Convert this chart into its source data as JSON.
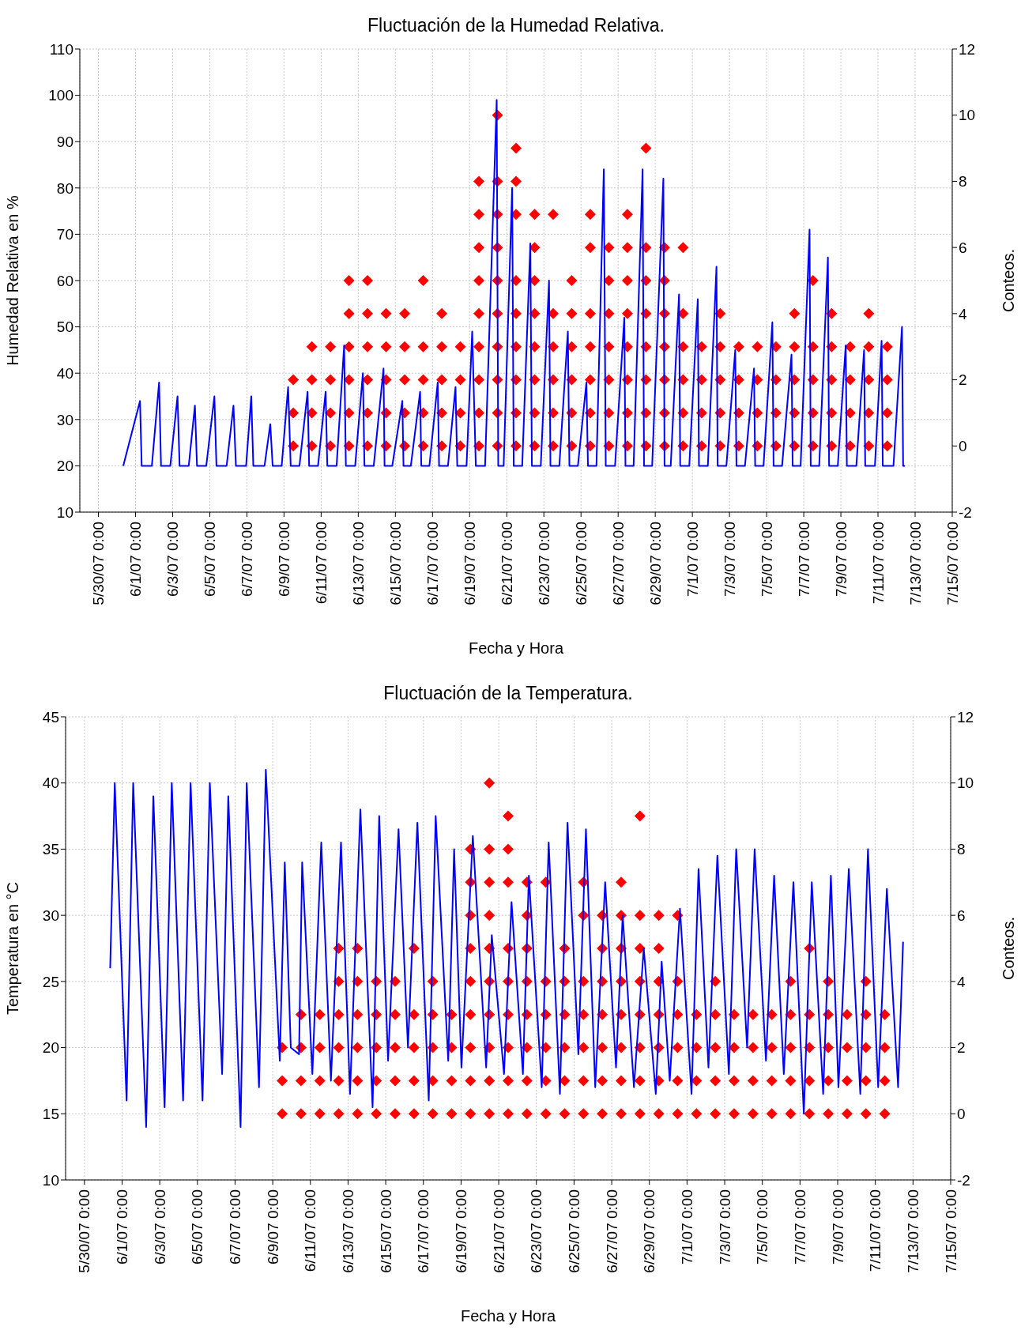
{
  "chart_data": [
    {
      "type": "line",
      "title": "Fluctuación de la Humedad Relativa.",
      "xlabel": "Fecha y Hora",
      "ylabel": "Humedad Relativa en %",
      "y2label": "Conteos.",
      "xlim": [
        "--05-29",
        "--07-15"
      ],
      "xticks": [
        {
          "value": "--05-30",
          "label": "5/30/07 0:00"
        },
        {
          "value": "--06-01",
          "label": "6/1/07 0:00"
        },
        {
          "value": "--06-03",
          "label": "6/3/07 0:00"
        },
        {
          "value": "--06-05",
          "label": "6/5/07 0:00"
        },
        {
          "value": "--06-07",
          "label": "6/7/07 0:00"
        },
        {
          "value": "--06-09",
          "label": "6/9/07 0:00"
        },
        {
          "value": "--06-11",
          "label": "6/11/07 0:00"
        },
        {
          "value": "--06-13",
          "label": "6/13/07 0:00"
        },
        {
          "value": "--06-15",
          "label": "6/15/07 0:00"
        },
        {
          "value": "--06-17",
          "label": "6/17/07 0:00"
        },
        {
          "value": "--06-19",
          "label": "6/19/07 0:00"
        },
        {
          "value": "--06-21",
          "label": "6/21/07 0:00"
        },
        {
          "value": "--06-23",
          "label": "6/23/07 0:00"
        },
        {
          "value": "--06-25",
          "label": "6/25/07 0:00"
        },
        {
          "value": "--06-27",
          "label": "6/27/07 0:00"
        },
        {
          "value": "--06-29",
          "label": "6/29/07 0:00"
        },
        {
          "value": "--07-01",
          "label": "7/1/07 0:00"
        },
        {
          "value": "--07-03",
          "label": "7/3/07 0:00"
        },
        {
          "value": "--07-05",
          "label": "7/5/07 0:00"
        },
        {
          "value": "--07-07",
          "label": "7/7/07 0:00"
        },
        {
          "value": "--07-09",
          "label": "7/9/07 0:00"
        },
        {
          "value": "--07-11",
          "label": "7/11/07 0:00"
        },
        {
          "value": "--07-13",
          "label": "7/13/07 0:00"
        },
        {
          "value": "--07-15",
          "label": "7/15/07 0:00"
        }
      ],
      "ylim": [
        10,
        110
      ],
      "yticks": [
        10,
        20,
        30,
        40,
        50,
        60,
        70,
        80,
        90,
        100,
        110
      ],
      "y2lim": [
        -2,
        12
      ],
      "y2ticks": [
        -2,
        0,
        2,
        4,
        6,
        8,
        10,
        12
      ],
      "grid": true,
      "series": [
        {
          "color": "#0000ff",
          "x": [
            "--05-31T08:10",
            "--06-01T05:50",
            "--06-01T08:00",
            "--06-01T21:10",
            "--06-02T06:30",
            "--06-02T09:00",
            "--06-02T21:00",
            "--06-03T06:20",
            "--06-03T09:00",
            "--06-03T20:50",
            "--06-04T04:50",
            "--06-04T07:30",
            "--06-04T19:30",
            "--06-05T06:00",
            "--06-05T08:40",
            "--06-05T21:50",
            "--06-06T06:40",
            "--06-06T09:50",
            "--06-06T23:00",
            "--06-07T05:40",
            "--06-07T08:20",
            "--06-07T22:50",
            "--06-08T06:15",
            "--06-08T09:20",
            "--06-08T21:00",
            "--06-09T05:20",
            "--06-09T08:40",
            "--06-09T20:00",
            "--06-10T06:30",
            "--06-10T08:30",
            "--06-10T20:00",
            "--06-11T05:50",
            "--06-11T08:00",
            "--06-11T20:00",
            "--06-12T05:45",
            "--06-12T08:00",
            "--06-12T20:00",
            "--06-13T06:00",
            "--06-13T08:00",
            "--06-13T20:00",
            "--06-14T08:40",
            "--06-14T10:00",
            "--06-14T20:00",
            "--06-15T09:00",
            "--06-15T10:30",
            "--06-15T20:00",
            "--06-16T08:00",
            "--06-16T09:30",
            "--06-16T20:00",
            "--06-17T06:45",
            "--06-17T08:30",
            "--06-17T20:00",
            "--06-18T05:45",
            "--06-18T08:00",
            "--06-18T20:00",
            "--06-19T03:20",
            "--06-19T08:00",
            "--06-19T20:00",
            "--06-20T11:00",
            "--06-20T13:00",
            "--06-20T20:00",
            "--06-21T07:00",
            "--06-21T09:00",
            "--06-21T20:00",
            "--06-22T06:30",
            "--06-22T08:30",
            "--06-22T20:00",
            "--06-23T06:40",
            "--06-23T08:30",
            "--06-23T20:00",
            "--06-24T07:00",
            "--06-24T09:00",
            "--06-24T20:00",
            "--06-25T07:00",
            "--06-25T09:00",
            "--06-25T20:00",
            "--06-26T05:30",
            "--06-26T08:00",
            "--06-26T20:00",
            "--06-27T08:00",
            "--06-27T09:30",
            "--06-27T20:00",
            "--06-28T07:40",
            "--06-28T09:30",
            "--06-28T20:00",
            "--06-29T10:30",
            "--06-29T12:00",
            "--06-29T20:00",
            "--06-30T06:45",
            "--06-30T08:15",
            "--06-30T20:00",
            "--07-01T07:00",
            "--07-01T08:30",
            "--07-01T20:00",
            "--07-02T07:10",
            "--07-02T08:40",
            "--07-02T20:00",
            "--07-03T07:25",
            "--07-03T09:00",
            "--07-03T20:00",
            "--07-04T07:40",
            "--07-04T09:10",
            "--07-04T20:00",
            "--07-05T07:25",
            "--07-05T09:00",
            "--07-05T20:00",
            "--07-06T08:10",
            "--07-06T09:40",
            "--07-06T20:00",
            "--07-07T07:30",
            "--07-07T09:00",
            "--07-07T20:00",
            "--07-08T07:15",
            "--07-08T08:45",
            "--07-08T20:00",
            "--07-09T06:15",
            "--07-09T07:45",
            "--07-09T20:00",
            "--07-10T06:00",
            "--07-10T07:30",
            "--07-10T20:00",
            "--07-11T04:40",
            "--07-11T06:10",
            "--07-11T20:00",
            "--07-12T07:00",
            "--07-12T08:30",
            "--07-12T10:45"
          ],
          "values": [
            20,
            34,
            20,
            20,
            38,
            20,
            20,
            35,
            20,
            20,
            33,
            20,
            20,
            35,
            20,
            20,
            33,
            20,
            20,
            35,
            20,
            20,
            29,
            20,
            20,
            37,
            20,
            20,
            36,
            20,
            20,
            36,
            20,
            20,
            46,
            20,
            20,
            40,
            20,
            20,
            41,
            20,
            20,
            34,
            20,
            20,
            36,
            20,
            20,
            38,
            20,
            20,
            37,
            20,
            20,
            49,
            20,
            20,
            99,
            20,
            20,
            80,
            20,
            20,
            68,
            20,
            20,
            60,
            20,
            20,
            49,
            20,
            20,
            38,
            20,
            20,
            84,
            20,
            20,
            52,
            20,
            20,
            84,
            20,
            20,
            82,
            20,
            20,
            57,
            20,
            20,
            56,
            20,
            20,
            63,
            20,
            20,
            45,
            20,
            20,
            41,
            20,
            20,
            51,
            20,
            20,
            44,
            20,
            20,
            71,
            20,
            20,
            65,
            20,
            20,
            46,
            20,
            20,
            45,
            20,
            20,
            47,
            20,
            20,
            50,
            20,
            20
          ]
        },
        {
          "type": "scatter",
          "axis": "y2",
          "color": "#ff0000",
          "marker": "diamond",
          "x": [
            "--06-09T12:00",
            "--06-09T12:00",
            "--06-09T12:00",
            "--06-10T12:00",
            "--06-10T12:00",
            "--06-10T12:00",
            "--06-10T12:00",
            "--06-11T12:00",
            "--06-11T12:00",
            "--06-11T12:00",
            "--06-11T12:00",
            "--06-12T12:00",
            "--06-12T12:00",
            "--06-12T12:00",
            "--06-12T12:00",
            "--06-12T12:00",
            "--06-12T12:00",
            "--06-13T12:00",
            "--06-13T12:00",
            "--06-13T12:00",
            "--06-13T12:00",
            "--06-13T12:00",
            "--06-13T12:00",
            "--06-14T12:00",
            "--06-14T12:00",
            "--06-14T12:00",
            "--06-14T12:00",
            "--06-14T12:00",
            "--06-15T12:00",
            "--06-15T12:00",
            "--06-15T12:00",
            "--06-15T12:00",
            "--06-15T12:00",
            "--06-16T12:00",
            "--06-16T12:00",
            "--06-16T12:00",
            "--06-16T12:00",
            "--06-16T12:00",
            "--06-17T12:00",
            "--06-17T12:00",
            "--06-17T12:00",
            "--06-17T12:00",
            "--06-17T12:00",
            "--06-18T12:00",
            "--06-18T12:00",
            "--06-18T12:00",
            "--06-18T12:00",
            "--06-19T12:00",
            "--06-19T12:00",
            "--06-19T12:00",
            "--06-19T12:00",
            "--06-19T12:00",
            "--06-19T12:00",
            "--06-19T12:00",
            "--06-19T12:00",
            "--06-19T12:00",
            "--06-20T12:00",
            "--06-20T12:00",
            "--06-20T12:00",
            "--06-20T12:00",
            "--06-20T12:00",
            "--06-20T12:00",
            "--06-20T12:00",
            "--06-20T12:00",
            "--06-20T12:00",
            "--06-20T12:00",
            "--06-21T12:00",
            "--06-21T12:00",
            "--06-21T12:00",
            "--06-21T12:00",
            "--06-21T12:00",
            "--06-21T12:00",
            "--06-21T12:00",
            "--06-21T12:00",
            "--06-21T12:00",
            "--06-22T12:00",
            "--06-22T12:00",
            "--06-22T12:00",
            "--06-22T12:00",
            "--06-22T12:00",
            "--06-22T12:00",
            "--06-22T12:00",
            "--06-22T12:00",
            "--06-23T12:00",
            "--06-23T12:00",
            "--06-23T12:00",
            "--06-23T12:00",
            "--06-23T12:00",
            "--06-23T12:00",
            "--06-24T12:00",
            "--06-24T12:00",
            "--06-24T12:00",
            "--06-24T12:00",
            "--06-24T12:00",
            "--06-24T12:00",
            "--06-25T12:00",
            "--06-25T12:00",
            "--06-25T12:00",
            "--06-25T12:00",
            "--06-25T12:00",
            "--06-25T12:00",
            "--06-25T12:00",
            "--06-26T12:00",
            "--06-26T12:00",
            "--06-26T12:00",
            "--06-26T12:00",
            "--06-26T12:00",
            "--06-26T12:00",
            "--06-26T12:00",
            "--06-27T12:00",
            "--06-27T12:00",
            "--06-27T12:00",
            "--06-27T12:00",
            "--06-27T12:00",
            "--06-27T12:00",
            "--06-27T12:00",
            "--06-27T12:00",
            "--06-28T12:00",
            "--06-28T12:00",
            "--06-28T12:00",
            "--06-28T12:00",
            "--06-28T12:00",
            "--06-28T12:00",
            "--06-28T12:00",
            "--06-28T12:00",
            "--06-29T12:00",
            "--06-29T12:00",
            "--06-29T12:00",
            "--06-29T12:00",
            "--06-29T12:00",
            "--06-29T12:00",
            "--06-29T12:00",
            "--06-30T12:00",
            "--06-30T12:00",
            "--06-30T12:00",
            "--06-30T12:00",
            "--06-30T12:00",
            "--06-30T12:00",
            "--07-01T12:00",
            "--07-01T12:00",
            "--07-01T12:00",
            "--07-01T12:00",
            "--07-02T12:00",
            "--07-02T12:00",
            "--07-02T12:00",
            "--07-02T12:00",
            "--07-02T12:00",
            "--07-03T12:00",
            "--07-03T12:00",
            "--07-03T12:00",
            "--07-03T12:00",
            "--07-04T12:00",
            "--07-04T12:00",
            "--07-04T12:00",
            "--07-04T12:00",
            "--07-05T12:00",
            "--07-05T12:00",
            "--07-05T12:00",
            "--07-05T12:00",
            "--07-06T12:00",
            "--07-06T12:00",
            "--07-06T12:00",
            "--07-06T12:00",
            "--07-06T12:00",
            "--07-07T12:00",
            "--07-07T12:00",
            "--07-07T12:00",
            "--07-07T12:00",
            "--07-07T12:00",
            "--07-08T12:00",
            "--07-08T12:00",
            "--07-08T12:00",
            "--07-08T12:00",
            "--07-08T12:00",
            "--07-09T12:00",
            "--07-09T12:00",
            "--07-09T12:00",
            "--07-09T12:00",
            "--07-10T12:00",
            "--07-10T12:00",
            "--07-10T12:00",
            "--07-10T12:00",
            "--07-10T12:00",
            "--07-11T12:00",
            "--07-11T12:00",
            "--07-11T12:00",
            "--07-11T12:00"
          ],
          "values": [
            0,
            1,
            2,
            0,
            1,
            2,
            3,
            0,
            1,
            2,
            3,
            0,
            1,
            2,
            3,
            4,
            5,
            0,
            1,
            2,
            3,
            4,
            5,
            0,
            1,
            2,
            3,
            4,
            0,
            1,
            2,
            3,
            4,
            0,
            1,
            2,
            3,
            5,
            0,
            1,
            2,
            3,
            4,
            0,
            1,
            2,
            3,
            0,
            1,
            2,
            3,
            4,
            5,
            6,
            7,
            8,
            0,
            1,
            2,
            3,
            4,
            5,
            6,
            7,
            8,
            10,
            0,
            1,
            2,
            3,
            4,
            5,
            7,
            8,
            9,
            0,
            1,
            2,
            3,
            4,
            5,
            6,
            7,
            0,
            1,
            2,
            3,
            4,
            7,
            0,
            1,
            2,
            3,
            4,
            5,
            0,
            1,
            2,
            3,
            4,
            6,
            7,
            0,
            1,
            2,
            3,
            4,
            5,
            6,
            0,
            1,
            2,
            3,
            4,
            5,
            6,
            7,
            0,
            1,
            2,
            3,
            4,
            5,
            6,
            9,
            0,
            1,
            2,
            3,
            4,
            5,
            6,
            0,
            1,
            2,
            3,
            4,
            6,
            0,
            1,
            2,
            3,
            0,
            1,
            2,
            3,
            4,
            0,
            1,
            2,
            3,
            0,
            1,
            2,
            3,
            0,
            1,
            2,
            3,
            0,
            1,
            2,
            3,
            4,
            0,
            1,
            2,
            3,
            5,
            0,
            1,
            2,
            3,
            4,
            0,
            1,
            2,
            3,
            0,
            1,
            2,
            3,
            4,
            0,
            1,
            2,
            3
          ]
        }
      ]
    },
    {
      "type": "line",
      "title": "Fluctuación de la Temperatura.",
      "xlabel": "Fecha y Hora",
      "ylabel": "Temperatura en °C",
      "y2label": "Conteos.",
      "xlim": [
        "--05-29",
        "--07-15"
      ],
      "xticks": [
        {
          "value": "--05-30",
          "label": "5/30/07 0:00"
        },
        {
          "value": "--06-01",
          "label": "6/1/07 0:00"
        },
        {
          "value": "--06-03",
          "label": "6/3/07 0:00"
        },
        {
          "value": "--06-05",
          "label": "6/5/07 0:00"
        },
        {
          "value": "--06-07",
          "label": "6/7/07 0:00"
        },
        {
          "value": "--06-09",
          "label": "6/9/07 0:00"
        },
        {
          "value": "--06-11",
          "label": "6/11/07 0:00"
        },
        {
          "value": "--06-13",
          "label": "6/13/07 0:00"
        },
        {
          "value": "--06-15",
          "label": "6/15/07 0:00"
        },
        {
          "value": "--06-17",
          "label": "6/17/07 0:00"
        },
        {
          "value": "--06-19",
          "label": "6/19/07 0:00"
        },
        {
          "value": "--06-21",
          "label": "6/21/07 0:00"
        },
        {
          "value": "--06-23",
          "label": "6/23/07 0:00"
        },
        {
          "value": "--06-25",
          "label": "6/25/07 0:00"
        },
        {
          "value": "--06-27",
          "label": "6/27/07 0:00"
        },
        {
          "value": "--06-29",
          "label": "6/29/07 0:00"
        },
        {
          "value": "--07-01",
          "label": "7/1/07 0:00"
        },
        {
          "value": "--07-03",
          "label": "7/3/07 0:00"
        },
        {
          "value": "--07-05",
          "label": "7/5/07 0:00"
        },
        {
          "value": "--07-07",
          "label": "7/7/07 0:00"
        },
        {
          "value": "--07-09",
          "label": "7/9/07 0:00"
        },
        {
          "value": "--07-11",
          "label": "7/11/07 0:00"
        },
        {
          "value": "--07-13",
          "label": "7/13/07 0:00"
        },
        {
          "value": "--07-15",
          "label": "7/15/07 0:00"
        }
      ],
      "ylim": [
        10,
        45
      ],
      "yticks": [
        10,
        15,
        20,
        25,
        30,
        35,
        40,
        45
      ],
      "y2lim": [
        -2,
        12
      ],
      "y2ticks": [
        -2,
        0,
        2,
        4,
        6,
        8,
        10,
        12
      ],
      "grid": true,
      "series": [
        {
          "color": "#0000ff",
          "x": [
            "--05-31T08:50",
            "--05-31T14:40",
            "--06-01T05:45",
            "--06-01T14:10",
            "--06-02T06:40",
            "--06-02T15:50",
            "--06-03T06:10",
            "--06-03T15:20",
            "--06-04T05:45",
            "--06-04T15:20",
            "--06-05T06:30",
            "--06-05T15:50",
            "--06-06T07:30",
            "--06-06T15:20",
            "--06-07T07:00",
            "--06-07T14:50",
            "--06-08T06:30",
            "--06-08T15:10",
            "--06-09T09:00",
            "--06-09T15:20",
            "--06-09T23:00",
            "--06-10T09:30",
            "--06-10T13:30",
            "--06-11T02:30",
            "--06-11T13:50",
            "--06-12T02:10",
            "--06-12T15:00",
            "--06-13T02:30",
            "--06-13T15:40",
            "--06-14T07:15",
            "--06-14T15:40",
            "--06-15T03:00",
            "--06-15T16:20",
            "--06-16T04:20",
            "--06-16T16:20",
            "--06-17T06:50",
            "--06-17T15:40",
            "--06-18T07:40",
            "--06-18T15:10",
            "--06-19T00:30",
            "--06-19T15:00",
            "--06-20T08:00",
            "--06-20T15:10",
            "--06-21T06:45",
            "--06-21T16:20",
            "--06-22T06:50",
            "--06-22T14:25",
            "--06-23T06:50",
            "--06-23T15:40",
            "--06-24T06:00",
            "--06-24T15:40",
            "--06-25T05:30",
            "--06-25T15:10",
            "--06-26T03:00",
            "--06-26T15:40",
            "--06-27T05:30",
            "--06-27T14:00",
            "--06-28T04:20",
            "--06-28T16:50",
            "--06-29T08:10",
            "--06-29T15:40",
            "--06-30T02:00",
            "--06-30T15:00",
            "--07-01T05:45",
            "--07-01T14:40",
            "--07-02T03:20",
            "--07-02T14:40",
            "--07-03T05:20",
            "--07-03T14:40",
            "--07-04T04:35",
            "--07-04T14:10",
            "--07-05T04:35",
            "--07-05T15:00",
            "--07-06T03:20",
            "--07-06T15:35",
            "--07-07T04:50",
            "--07-07T15:00",
            "--07-08T05:30",
            "--07-08T15:20",
            "--07-09T01:00",
            "--07-09T14:10",
            "--07-10T04:50",
            "--07-10T14:35",
            "--07-11T03:35",
            "--07-11T14:40",
            "--07-12T05:00",
            "--07-12T11:20"
          ],
          "values": [
            26,
            40,
            16,
            40,
            14,
            39,
            15.5,
            40,
            16,
            40,
            16,
            40,
            18,
            39,
            14,
            40,
            17,
            41,
            19,
            34,
            20,
            19.5,
            34,
            18,
            35.5,
            17.5,
            35.5,
            16.5,
            38,
            15.5,
            37.5,
            19,
            36.5,
            20,
            37,
            16,
            37.5,
            19,
            35,
            18.5,
            36,
            18.5,
            28.5,
            18,
            31,
            18,
            33,
            17,
            35.5,
            16.5,
            37,
            19.5,
            36.5,
            17,
            32.5,
            18.5,
            30,
            17,
            27.5,
            16.5,
            26.5,
            17.5,
            30.5,
            16.5,
            33.5,
            18.5,
            34.5,
            18,
            35,
            20,
            35,
            19,
            33,
            18,
            32.5,
            15,
            32.5,
            16.5,
            33,
            17,
            33.5,
            16.5,
            35,
            17,
            32,
            17,
            28
          ]
        },
        {
          "type": "scatter",
          "axis": "y2",
          "color": "#ff0000",
          "marker": "diamond",
          "x": [
            "--06-09T12:00",
            "--06-09T12:00",
            "--06-09T12:00",
            "--06-10T12:00",
            "--06-10T12:00",
            "--06-10T12:00",
            "--06-10T12:00",
            "--06-11T12:00",
            "--06-11T12:00",
            "--06-11T12:00",
            "--06-11T12:00",
            "--06-12T12:00",
            "--06-12T12:00",
            "--06-12T12:00",
            "--06-12T12:00",
            "--06-12T12:00",
            "--06-12T12:00",
            "--06-13T12:00",
            "--06-13T12:00",
            "--06-13T12:00",
            "--06-13T12:00",
            "--06-13T12:00",
            "--06-13T12:00",
            "--06-14T12:00",
            "--06-14T12:00",
            "--06-14T12:00",
            "--06-14T12:00",
            "--06-14T12:00",
            "--06-15T12:00",
            "--06-15T12:00",
            "--06-15T12:00",
            "--06-15T12:00",
            "--06-15T12:00",
            "--06-16T12:00",
            "--06-16T12:00",
            "--06-16T12:00",
            "--06-16T12:00",
            "--06-16T12:00",
            "--06-17T12:00",
            "--06-17T12:00",
            "--06-17T12:00",
            "--06-17T12:00",
            "--06-17T12:00",
            "--06-18T12:00",
            "--06-18T12:00",
            "--06-18T12:00",
            "--06-18T12:00",
            "--06-19T12:00",
            "--06-19T12:00",
            "--06-19T12:00",
            "--06-19T12:00",
            "--06-19T12:00",
            "--06-19T12:00",
            "--06-19T12:00",
            "--06-19T12:00",
            "--06-19T12:00",
            "--06-20T12:00",
            "--06-20T12:00",
            "--06-20T12:00",
            "--06-20T12:00",
            "--06-20T12:00",
            "--06-20T12:00",
            "--06-20T12:00",
            "--06-20T12:00",
            "--06-20T12:00",
            "--06-20T12:00",
            "--06-21T12:00",
            "--06-21T12:00",
            "--06-21T12:00",
            "--06-21T12:00",
            "--06-21T12:00",
            "--06-21T12:00",
            "--06-21T12:00",
            "--06-21T12:00",
            "--06-21T12:00",
            "--06-22T12:00",
            "--06-22T12:00",
            "--06-22T12:00",
            "--06-22T12:00",
            "--06-22T12:00",
            "--06-22T12:00",
            "--06-22T12:00",
            "--06-22T12:00",
            "--06-23T12:00",
            "--06-23T12:00",
            "--06-23T12:00",
            "--06-23T12:00",
            "--06-23T12:00",
            "--06-23T12:00",
            "--06-24T12:00",
            "--06-24T12:00",
            "--06-24T12:00",
            "--06-24T12:00",
            "--06-24T12:00",
            "--06-24T12:00",
            "--06-25T12:00",
            "--06-25T12:00",
            "--06-25T12:00",
            "--06-25T12:00",
            "--06-25T12:00",
            "--06-25T12:00",
            "--06-25T12:00",
            "--06-26T12:00",
            "--06-26T12:00",
            "--06-26T12:00",
            "--06-26T12:00",
            "--06-26T12:00",
            "--06-26T12:00",
            "--06-26T12:00",
            "--06-27T12:00",
            "--06-27T12:00",
            "--06-27T12:00",
            "--06-27T12:00",
            "--06-27T12:00",
            "--06-27T12:00",
            "--06-27T12:00",
            "--06-27T12:00",
            "--06-28T12:00",
            "--06-28T12:00",
            "--06-28T12:00",
            "--06-28T12:00",
            "--06-28T12:00",
            "--06-28T12:00",
            "--06-28T12:00",
            "--06-28T12:00",
            "--06-29T12:00",
            "--06-29T12:00",
            "--06-29T12:00",
            "--06-29T12:00",
            "--06-29T12:00",
            "--06-29T12:00",
            "--06-29T12:00",
            "--06-30T12:00",
            "--06-30T12:00",
            "--06-30T12:00",
            "--06-30T12:00",
            "--06-30T12:00",
            "--06-30T12:00",
            "--07-01T12:00",
            "--07-01T12:00",
            "--07-01T12:00",
            "--07-01T12:00",
            "--07-02T12:00",
            "--07-02T12:00",
            "--07-02T12:00",
            "--07-02T12:00",
            "--07-02T12:00",
            "--07-03T12:00",
            "--07-03T12:00",
            "--07-03T12:00",
            "--07-03T12:00",
            "--07-04T12:00",
            "--07-04T12:00",
            "--07-04T12:00",
            "--07-04T12:00",
            "--07-05T12:00",
            "--07-05T12:00",
            "--07-05T12:00",
            "--07-05T12:00",
            "--07-06T12:00",
            "--07-06T12:00",
            "--07-06T12:00",
            "--07-06T12:00",
            "--07-06T12:00",
            "--07-07T12:00",
            "--07-07T12:00",
            "--07-07T12:00",
            "--07-07T12:00",
            "--07-07T12:00",
            "--07-08T12:00",
            "--07-08T12:00",
            "--07-08T12:00",
            "--07-08T12:00",
            "--07-08T12:00",
            "--07-09T12:00",
            "--07-09T12:00",
            "--07-09T12:00",
            "--07-09T12:00",
            "--07-10T12:00",
            "--07-10T12:00",
            "--07-10T12:00",
            "--07-10T12:00",
            "--07-10T12:00",
            "--07-11T12:00",
            "--07-11T12:00",
            "--07-11T12:00",
            "--07-11T12:00"
          ],
          "values": [
            0,
            1,
            2,
            0,
            1,
            2,
            3,
            0,
            1,
            2,
            3,
            0,
            1,
            2,
            3,
            4,
            5,
            0,
            1,
            2,
            3,
            4,
            5,
            0,
            1,
            2,
            3,
            4,
            0,
            1,
            2,
            3,
            4,
            0,
            1,
            2,
            3,
            5,
            0,
            1,
            2,
            3,
            4,
            0,
            1,
            2,
            3,
            0,
            1,
            2,
            3,
            4,
            5,
            6,
            7,
            8,
            0,
            1,
            2,
            3,
            4,
            5,
            6,
            7,
            8,
            10,
            0,
            1,
            2,
            3,
            4,
            5,
            7,
            8,
            9,
            0,
            1,
            2,
            3,
            4,
            5,
            6,
            7,
            0,
            1,
            2,
            3,
            4,
            7,
            0,
            1,
            2,
            3,
            4,
            5,
            0,
            1,
            2,
            3,
            4,
            6,
            7,
            0,
            1,
            2,
            3,
            4,
            5,
            6,
            0,
            1,
            2,
            3,
            4,
            5,
            6,
            7,
            0,
            1,
            2,
            3,
            4,
            5,
            6,
            9,
            0,
            1,
            2,
            3,
            4,
            5,
            6,
            0,
            1,
            2,
            3,
            4,
            6,
            0,
            1,
            2,
            3,
            0,
            1,
            2,
            3,
            4,
            0,
            1,
            2,
            3,
            0,
            1,
            2,
            3,
            0,
            1,
            2,
            3,
            0,
            1,
            2,
            3,
            4,
            0,
            1,
            2,
            3,
            5,
            0,
            1,
            2,
            3,
            4,
            0,
            1,
            2,
            3,
            0,
            1,
            2,
            3,
            4,
            0,
            1,
            2,
            3
          ]
        }
      ]
    }
  ]
}
